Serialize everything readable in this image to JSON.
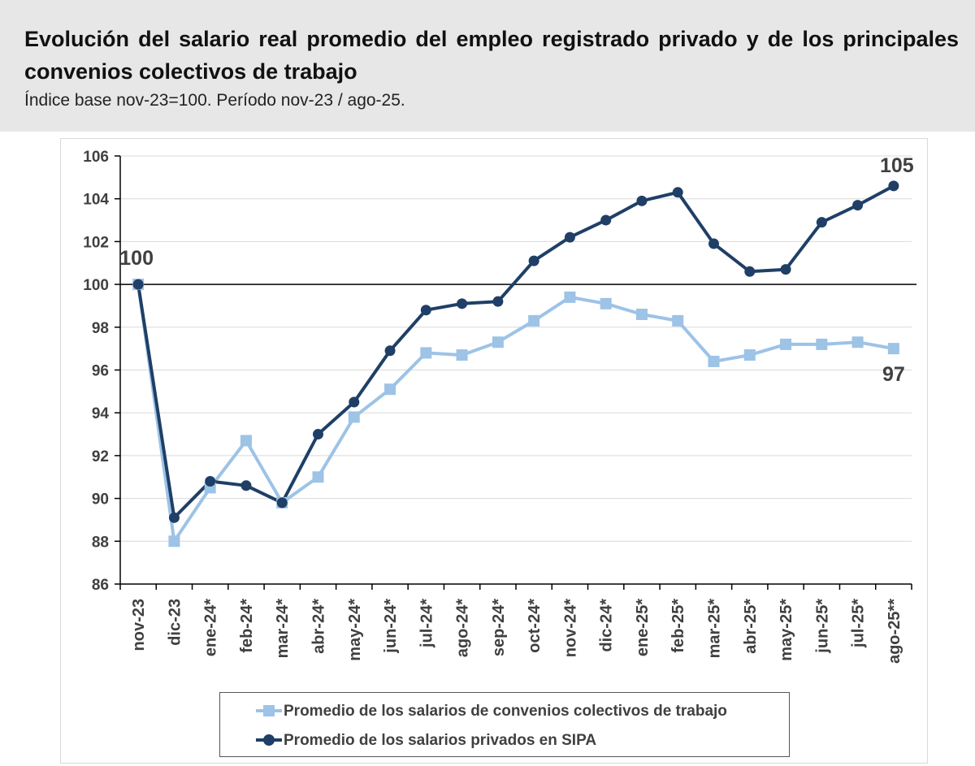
{
  "header": {
    "title": "Evolución del salario real promedio del empleo registrado privado y de los principales convenios colectivos de trabajo",
    "subtitle": "Índice base nov-23=100. Período nov-23 / ago-25."
  },
  "chart_data": {
    "type": "line",
    "categories": [
      "nov-23",
      "dic-23",
      "ene-24*",
      "feb-24*",
      "mar-24*",
      "abr-24*",
      "may-24*",
      "jun-24*",
      "jul-24*",
      "ago-24*",
      "sep-24*",
      "oct-24*",
      "nov-24*",
      "dic-24*",
      "ene-25*",
      "feb-25*",
      "mar-25*",
      "abr-25*",
      "may-25*",
      "jun-25*",
      "jul-25*",
      "ago-25**"
    ],
    "ylim": [
      86,
      106
    ],
    "yticks": [
      86,
      88,
      90,
      92,
      94,
      96,
      98,
      100,
      102,
      104,
      106
    ],
    "reference_line": 100,
    "grid": true,
    "legend_position": "bottom",
    "series": [
      {
        "name": "Promedio de los salarios de convenios colectivos de trabajo",
        "color": "#9dc3e6",
        "marker": "square",
        "values": [
          100.0,
          88.0,
          90.5,
          92.7,
          89.8,
          91.0,
          93.8,
          95.1,
          96.8,
          96.7,
          97.3,
          98.3,
          99.4,
          99.1,
          98.6,
          98.3,
          96.4,
          96.7,
          97.2,
          97.2,
          97.3,
          97.0
        ]
      },
      {
        "name": "Promedio de los salarios privados en SIPA",
        "color": "#1f3f66",
        "marker": "circle",
        "values": [
          100.0,
          89.1,
          90.8,
          90.6,
          89.8,
          93.0,
          94.5,
          96.9,
          98.8,
          99.1,
          99.2,
          101.1,
          102.2,
          103.0,
          103.9,
          104.3,
          101.9,
          100.6,
          100.7,
          102.9,
          103.7,
          104.6
        ]
      }
    ],
    "annotations": [
      {
        "text": "100",
        "category": "nov-23",
        "value": 100
      },
      {
        "text": "105",
        "category": "ago-25**",
        "value": 104.6
      },
      {
        "text": "97",
        "category": "ago-25**",
        "value": 97.0
      }
    ]
  }
}
